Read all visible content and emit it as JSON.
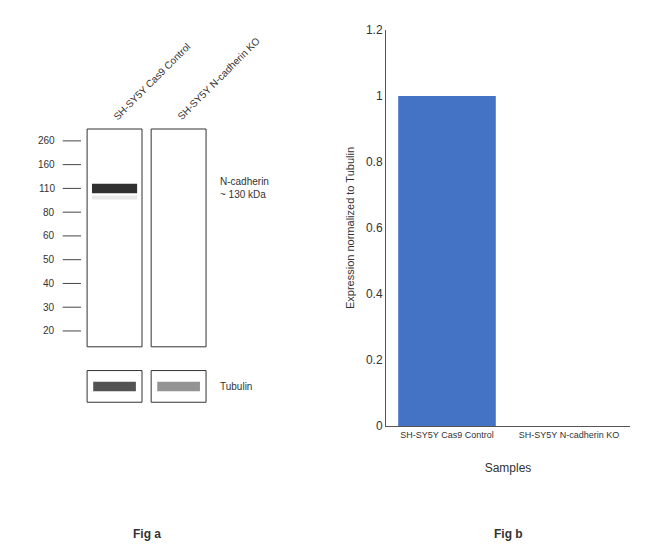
{
  "chart_data": [
    {
      "type": "bar",
      "categories": [
        "SH-SY5Y Cas9 Control",
        "SH-SY5Y N-cadherin KO"
      ],
      "values": [
        1,
        0
      ],
      "color": "#4472c4",
      "ylim": [
        0,
        1.2
      ],
      "yticks": [
        0,
        0.2,
        0.4,
        0.6,
        0.8,
        1,
        1.2
      ],
      "xlabel": "Samples",
      "ylabel": "Expression normalized to Tubulin",
      "annotations": [
        "Fig b"
      ],
      "grid": false
    },
    {
      "type": "blot",
      "categories": [
        "SH-SY5Y Cas9 Control",
        "SH-SY5Y N-cadherin KO"
      ],
      "annotations": [
        "260",
        "160",
        "110",
        "80",
        "60",
        "50",
        "40",
        "30",
        "20",
        "N-cadherin\n~ 130 kDa",
        "Tubulin",
        "Fig a"
      ]
    }
  ]
}
